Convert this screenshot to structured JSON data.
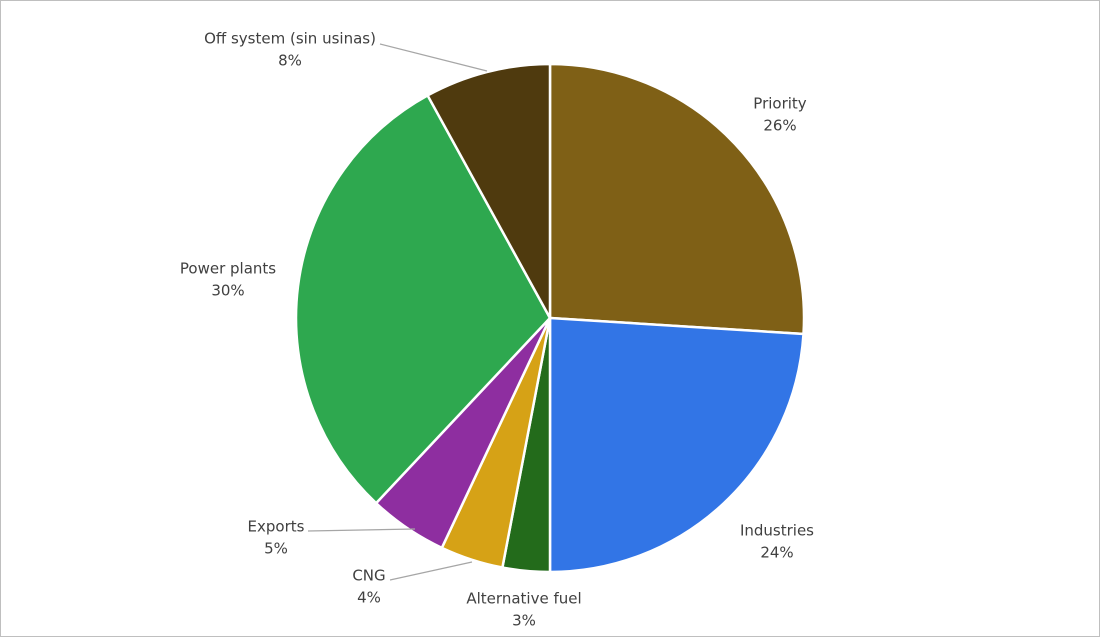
{
  "chart_data": {
    "type": "pie",
    "categories": [
      "Priority",
      "Industries",
      "Alternative fuel",
      "CNG",
      "Exports",
      "Power plants",
      "Off system (sin usinas)"
    ],
    "values": [
      26,
      24,
      3,
      4,
      5,
      30,
      8
    ],
    "value_labels": [
      "26%",
      "24%",
      "3%",
      "4%",
      "5%",
      "30%",
      "8%"
    ],
    "colors": [
      "#7f6016",
      "#3275e6",
      "#236b1b",
      "#d6a216",
      "#8e2ea0",
      "#2ea84f",
      "#4f3a0e"
    ]
  }
}
